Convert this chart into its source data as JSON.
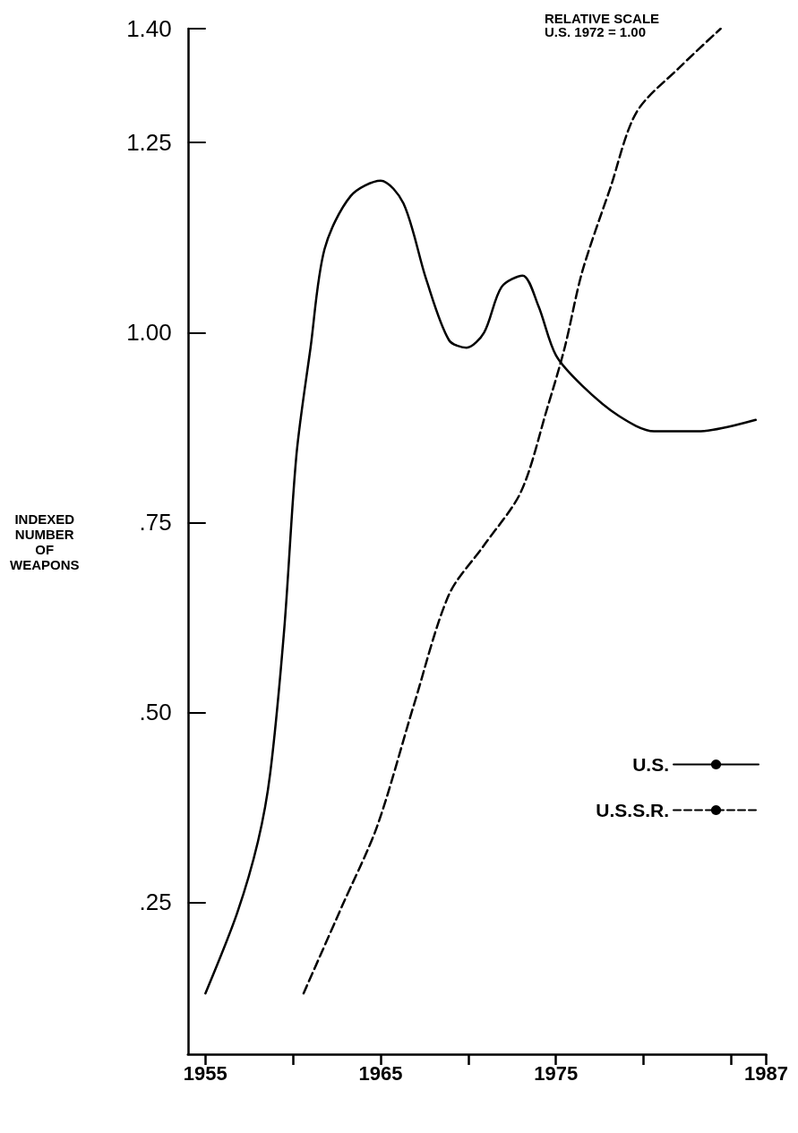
{
  "chart_data": {
    "type": "line",
    "ylabel": "INDEXED NUMBER OF WEAPONS",
    "annotations": [
      "RELATIVE SCALE\nU.S. 1972 = 1.00"
    ],
    "xlim": [
      1954,
      1987
    ],
    "xticks": [
      1955,
      {
        "value": 1960,
        "label": null
      },
      1965,
      {
        "value": 1970,
        "label": null
      },
      1975,
      {
        "value": 1980,
        "label": null
      },
      {
        "value": 1985,
        "label": null
      },
      1987
    ],
    "ylim": [
      0.05,
      1.4
    ],
    "yticks": [
      {
        "value": 0.25,
        "label": ".25"
      },
      {
        "value": 0.5,
        "label": ".50"
      },
      {
        "value": 0.75,
        "label": ".75"
      },
      {
        "value": 1,
        "label": "1.00"
      },
      {
        "value": 1.25,
        "label": "1.25"
      },
      {
        "value": 1.4,
        "label": "1.40"
      }
    ],
    "grid": false,
    "legend": "bottom right",
    "marker": "none",
    "series": [
      {
        "name": "U.S.",
        "color": "#000000",
        "line_style": "solid",
        "x": [
          1955,
          1956.8,
          1958,
          1958.7,
          1959.5,
          1960.2,
          1961,
          1961.8,
          1963.3,
          1965,
          1966.3,
          1967.6,
          1968.9,
          1969.9,
          1970.9,
          1971.9,
          1973.1,
          1974,
          1975,
          1976.5,
          1978.6,
          1980.6,
          1983.1,
          1986.4
        ],
        "values": [
          0.13,
          0.235,
          0.33,
          0.42,
          0.61,
          0.84,
          0.98,
          1.11,
          1.18,
          1.2,
          1.17,
          1.07,
          0.99,
          0.98,
          1.0,
          1.06,
          1.075,
          1.035,
          0.97,
          0.93,
          0.89,
          0.87,
          0.87,
          0.885
        ]
      },
      {
        "name": "U.S.S.R.",
        "color": "#000000",
        "line_style": "dashed",
        "x": [
          1960.6,
          1962.8,
          1964.8,
          1966.9,
          1968.9,
          1970.9,
          1973,
          1974.5,
          1975.5,
          1976.5,
          1978.1,
          1979.6,
          1982.1,
          1984.4
        ],
        "values": [
          0.13,
          0.245,
          0.35,
          0.51,
          0.655,
          0.72,
          0.79,
          0.9,
          0.98,
          1.08,
          1.19,
          1.29,
          1.35,
          1.4
        ]
      }
    ]
  }
}
